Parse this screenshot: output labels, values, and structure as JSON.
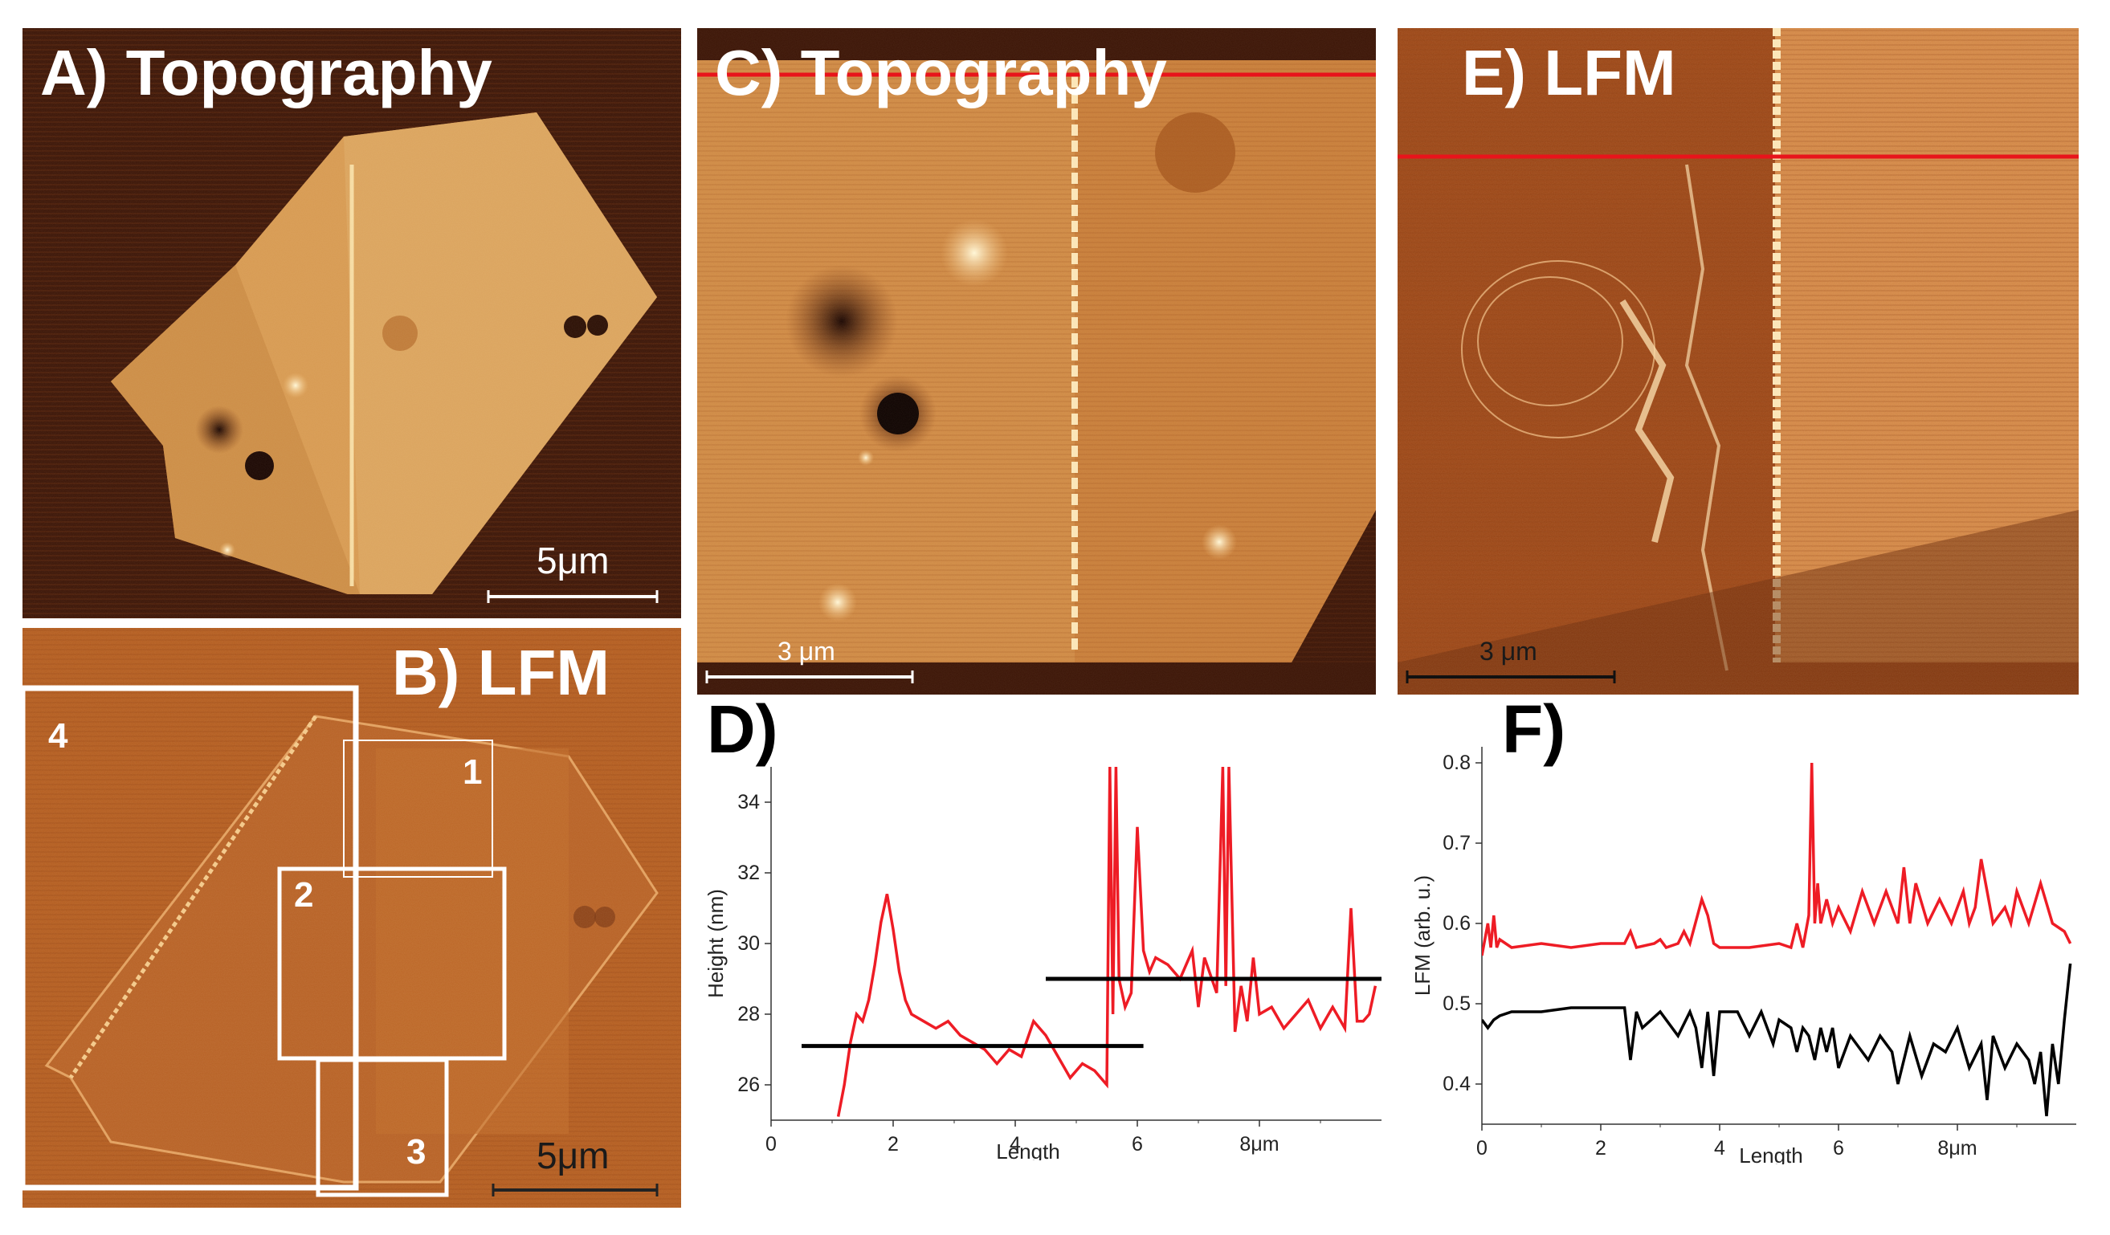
{
  "panels": {
    "a": {
      "title": "A) Topography",
      "scale_bar": "5μm"
    },
    "b": {
      "title": "B) LFM",
      "scale_bar": "5μm",
      "regions": [
        {
          "label": "1"
        },
        {
          "label": "2"
        },
        {
          "label": "3"
        },
        {
          "label": "4"
        }
      ]
    },
    "c": {
      "title": "C) Topography",
      "scale_bar": "3 μm"
    },
    "e": {
      "title": "E) LFM",
      "scale_bar": "3 μm"
    }
  },
  "colors": {
    "line_red": "#e8141b",
    "trace_red": "#ee1c25",
    "trace_black": "#000000",
    "afm_dark": "#3a1205",
    "afm_mid": "#c8722a",
    "afm_light": "#f0b572"
  },
  "chart_data": [
    {
      "panel_label": "D)",
      "type": "line",
      "xlabel": "Length",
      "ylabel": "Height (nm)",
      "xlim": [
        0,
        10
      ],
      "ylim": [
        25,
        35
      ],
      "x_ticks": [
        "0",
        "2",
        "4",
        "6",
        "8μm"
      ],
      "y_ticks": [
        "26",
        "28",
        "30",
        "32",
        "34"
      ],
      "series": [
        {
          "x": [
            1.1,
            1.2,
            1.3,
            1.4,
            1.5,
            1.6,
            1.7,
            1.8,
            1.9,
            2.0,
            2.1,
            2.2,
            2.3,
            2.5,
            2.7,
            2.9,
            3.1,
            3.3,
            3.5,
            3.7,
            3.9,
            4.1,
            4.3,
            4.5,
            4.7,
            4.9,
            5.1,
            5.3,
            5.5,
            5.55,
            5.6,
            5.65,
            5.7,
            5.8,
            5.9,
            6.0,
            6.1,
            6.2,
            6.3,
            6.5,
            6.7,
            6.9,
            7.0,
            7.1,
            7.3,
            7.4,
            7.45,
            7.5,
            7.6,
            7.7,
            7.8,
            7.9,
            8.0,
            8.2,
            8.4,
            8.6,
            8.8,
            9.0,
            9.2,
            9.4,
            9.5,
            9.6,
            9.7,
            9.8,
            9.9
          ],
          "y": [
            25.1,
            26.0,
            27.2,
            28.0,
            27.8,
            28.4,
            29.4,
            30.6,
            31.4,
            30.4,
            29.2,
            28.4,
            28.0,
            27.8,
            27.6,
            27.8,
            27.4,
            27.2,
            27.0,
            26.6,
            27.0,
            26.8,
            27.8,
            27.4,
            26.8,
            26.2,
            26.6,
            26.4,
            26.0,
            35.0,
            28.0,
            35.0,
            29.0,
            28.2,
            28.6,
            33.3,
            29.8,
            29.2,
            29.6,
            29.4,
            29.0,
            29.8,
            28.2,
            29.6,
            28.6,
            35.0,
            28.8,
            35.0,
            27.5,
            28.8,
            27.8,
            29.6,
            28.0,
            28.2,
            27.6,
            28.0,
            28.4,
            27.6,
            28.2,
            27.6,
            31.0,
            27.8,
            27.8,
            28.0,
            28.8
          ]
        }
      ],
      "reference_lines": [
        {
          "x_start": 0.5,
          "x_end": 6.1,
          "y": 27.1
        },
        {
          "x_start": 4.5,
          "x_end": 10.0,
          "y": 29.0
        }
      ]
    },
    {
      "panel_label": "F)",
      "type": "line",
      "xlabel": "Length",
      "ylabel": "LFM (arb. u.)",
      "xlim": [
        0,
        10
      ],
      "ylim": [
        0.35,
        0.82
      ],
      "x_ticks": [
        "0",
        "2",
        "4",
        "6",
        "8μm"
      ],
      "y_ticks": [
        "0.4",
        "0.5",
        "0.6",
        "0.7",
        "0.8"
      ],
      "series": [
        {
          "color": "red",
          "x": [
            0.0,
            0.1,
            0.15,
            0.2,
            0.25,
            0.3,
            0.5,
            1.0,
            1.5,
            2.0,
            2.4,
            2.5,
            2.6,
            2.9,
            3.0,
            3.1,
            3.3,
            3.4,
            3.5,
            3.7,
            3.8,
            3.9,
            4.0,
            4.5,
            5.0,
            5.2,
            5.3,
            5.4,
            5.5,
            5.55,
            5.6,
            5.65,
            5.7,
            5.8,
            5.9,
            6.0,
            6.2,
            6.4,
            6.6,
            6.8,
            7.0,
            7.1,
            7.2,
            7.3,
            7.5,
            7.7,
            7.9,
            8.1,
            8.2,
            8.3,
            8.4,
            8.6,
            8.8,
            8.9,
            9.0,
            9.2,
            9.4,
            9.6,
            9.8,
            9.9
          ],
          "y": [
            0.56,
            0.6,
            0.57,
            0.61,
            0.57,
            0.58,
            0.57,
            0.575,
            0.57,
            0.575,
            0.575,
            0.59,
            0.57,
            0.575,
            0.58,
            0.57,
            0.575,
            0.59,
            0.575,
            0.63,
            0.61,
            0.575,
            0.57,
            0.57,
            0.575,
            0.57,
            0.6,
            0.57,
            0.61,
            0.8,
            0.6,
            0.65,
            0.6,
            0.63,
            0.6,
            0.62,
            0.59,
            0.64,
            0.6,
            0.64,
            0.6,
            0.67,
            0.6,
            0.65,
            0.6,
            0.63,
            0.6,
            0.64,
            0.6,
            0.62,
            0.68,
            0.6,
            0.62,
            0.6,
            0.64,
            0.6,
            0.65,
            0.6,
            0.59,
            0.575
          ]
        },
        {
          "color": "black",
          "x": [
            0.0,
            0.1,
            0.2,
            0.3,
            0.5,
            1.0,
            1.5,
            2.0,
            2.4,
            2.5,
            2.6,
            2.7,
            3.0,
            3.3,
            3.5,
            3.6,
            3.7,
            3.8,
            3.9,
            4.0,
            4.3,
            4.5,
            4.7,
            4.9,
            5.0,
            5.2,
            5.3,
            5.4,
            5.5,
            5.6,
            5.7,
            5.8,
            5.9,
            6.0,
            6.2,
            6.3,
            6.5,
            6.7,
            6.9,
            7.0,
            7.2,
            7.4,
            7.6,
            7.8,
            8.0,
            8.2,
            8.4,
            8.5,
            8.6,
            8.8,
            9.0,
            9.2,
            9.3,
            9.4,
            9.5,
            9.6,
            9.7,
            9.8,
            9.9
          ],
          "y": [
            0.48,
            0.47,
            0.48,
            0.485,
            0.49,
            0.49,
            0.495,
            0.495,
            0.495,
            0.43,
            0.49,
            0.47,
            0.49,
            0.46,
            0.49,
            0.47,
            0.42,
            0.49,
            0.41,
            0.49,
            0.49,
            0.46,
            0.49,
            0.45,
            0.48,
            0.47,
            0.44,
            0.47,
            0.46,
            0.43,
            0.47,
            0.44,
            0.47,
            0.42,
            0.46,
            0.45,
            0.43,
            0.46,
            0.44,
            0.4,
            0.46,
            0.41,
            0.45,
            0.44,
            0.47,
            0.42,
            0.45,
            0.38,
            0.46,
            0.42,
            0.45,
            0.43,
            0.4,
            0.44,
            0.36,
            0.45,
            0.4,
            0.48,
            0.55
          ]
        }
      ]
    }
  ]
}
